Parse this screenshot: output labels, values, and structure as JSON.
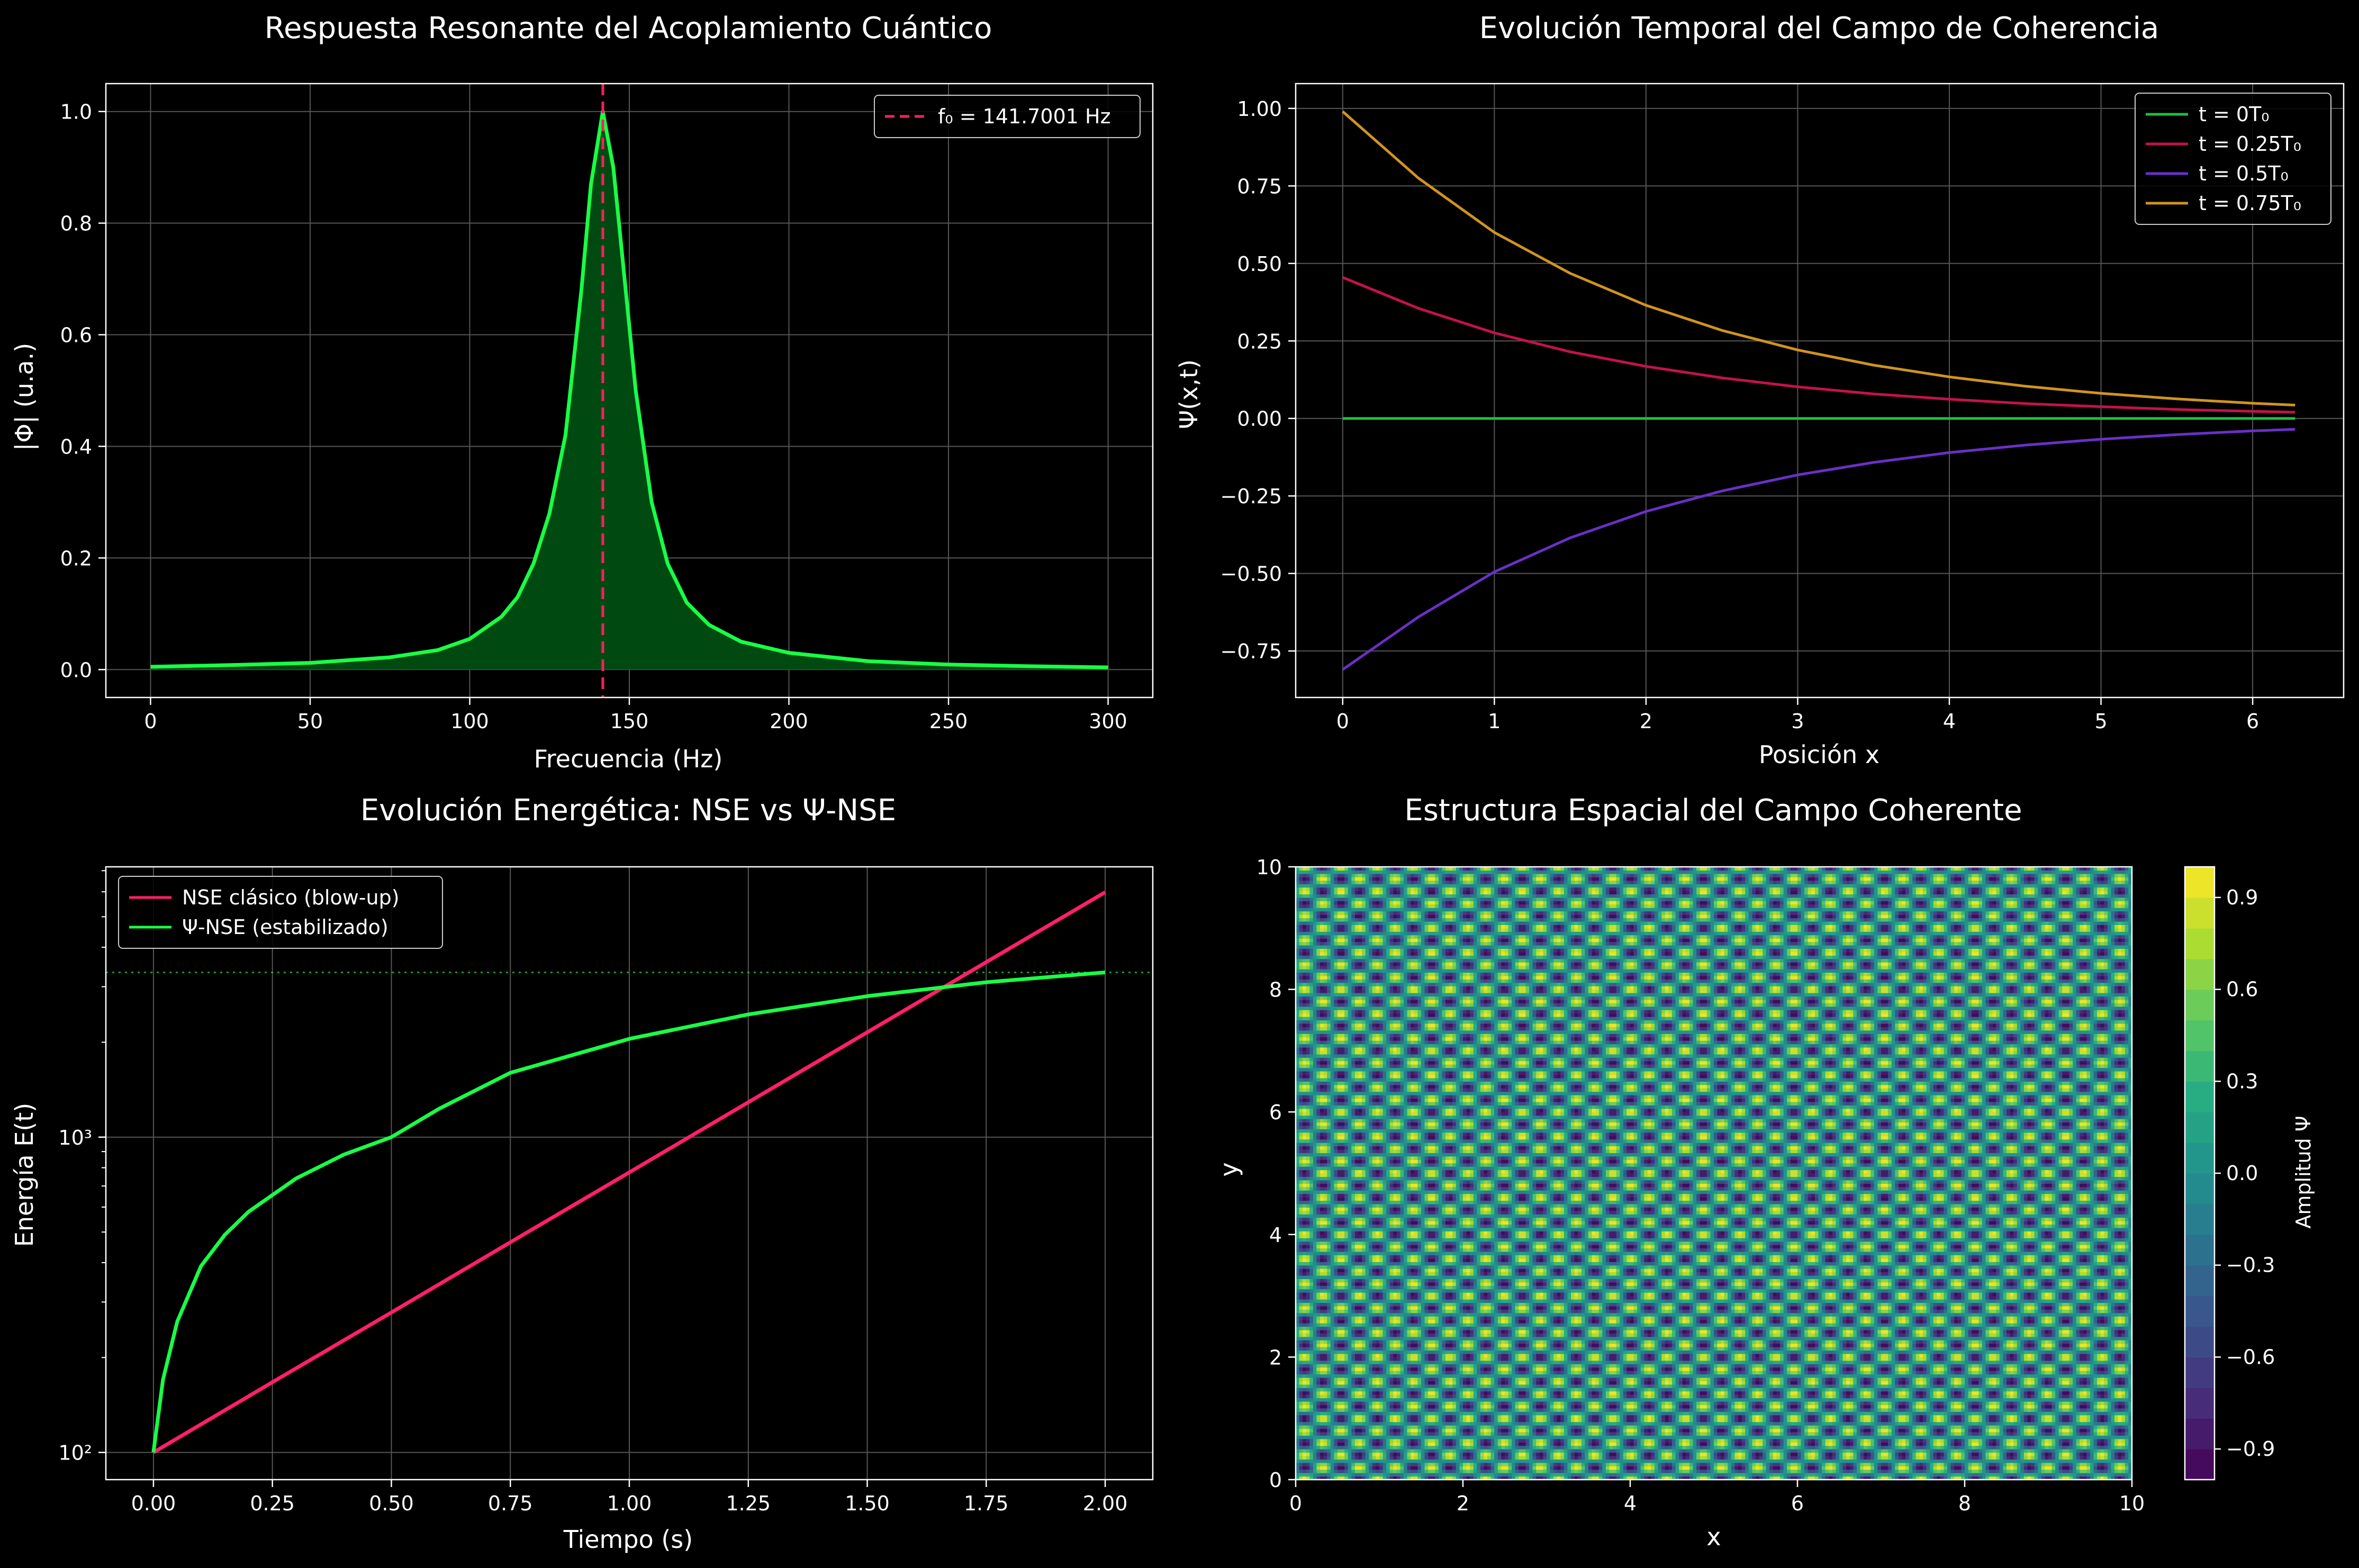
{
  "figure": {
    "background": "#000000",
    "axes_color": "#ffffff",
    "grid_color": "#555555"
  },
  "chart_data": [
    {
      "id": "resonance",
      "type": "area",
      "title": "Respuesta Resonante del Acoplamiento Cuántico",
      "xlabel": "Frecuencia (Hz)",
      "ylabel": "|Φ| (u.a.)",
      "xlim": [
        -14,
        314
      ],
      "ylim": [
        -0.05,
        1.05
      ],
      "xticks": [
        0,
        50,
        100,
        150,
        200,
        250,
        300
      ],
      "yticks": [
        0.0,
        0.2,
        0.4,
        0.6,
        0.8,
        1.0
      ],
      "xticklabels": [
        "0",
        "50",
        "100",
        "150",
        "200",
        "250",
        "300"
      ],
      "yticklabels": [
        "0.0",
        "0.2",
        "0.4",
        "0.6",
        "0.8",
        "1.0"
      ],
      "grid": true,
      "legend_position": "top-right",
      "series": [
        {
          "x": [
            0,
            25,
            50,
            75,
            90,
            100,
            110,
            115,
            120,
            125,
            130,
            135,
            138,
            141.7,
            145,
            148,
            152,
            157,
            162,
            168,
            175,
            185,
            200,
            225,
            250,
            275,
            300
          ],
          "y": [
            0.005,
            0.008,
            0.012,
            0.022,
            0.035,
            0.055,
            0.095,
            0.13,
            0.19,
            0.28,
            0.42,
            0.68,
            0.87,
            1.0,
            0.9,
            0.73,
            0.5,
            0.3,
            0.19,
            0.12,
            0.08,
            0.05,
            0.03,
            0.015,
            0.009,
            0.006,
            0.004
          ],
          "color": "#19ff46",
          "fill_color": "#004a11"
        }
      ],
      "vline": {
        "x": 141.7001,
        "label": "f₀ = 141.7001 Hz",
        "color": "#ff1f5a"
      }
    },
    {
      "id": "temporal",
      "type": "line",
      "title": "Evolución Temporal del Campo de Coherencia",
      "xlabel": "Posición x",
      "ylabel": "Ψ(x,t)",
      "xlim": [
        -0.31,
        6.6
      ],
      "ylim": [
        -0.9,
        1.08
      ],
      "xticks": [
        0,
        1,
        2,
        3,
        4,
        5,
        6
      ],
      "yticks": [
        -0.75,
        -0.5,
        -0.25,
        0.0,
        0.25,
        0.5,
        0.75,
        1.0
      ],
      "xticklabels": [
        "0",
        "1",
        "2",
        "3",
        "4",
        "5",
        "6"
      ],
      "yticklabels": [
        "−0.75",
        "−0.50",
        "−0.25",
        "0.00",
        "0.25",
        "0.50",
        "0.75",
        "1.00"
      ],
      "grid": true,
      "legend_position": "top-right",
      "series": [
        {
          "name": "t = 0T₀",
          "color": "#1fbf3a",
          "x": [
            0,
            0.5,
            1,
            1.5,
            2,
            2.5,
            3,
            3.5,
            4,
            4.5,
            5,
            5.5,
            6,
            6.28
          ],
          "y": [
            0,
            0,
            0,
            0,
            0,
            0,
            0,
            0,
            0,
            0,
            0,
            0,
            0,
            0
          ]
        },
        {
          "name": "t = 0.25T₀",
          "color": "#c4124a",
          "x": [
            0,
            0.5,
            1,
            1.5,
            2,
            2.5,
            3,
            3.5,
            4,
            4.5,
            5,
            5.5,
            6,
            6.28
          ],
          "y": [
            0.455,
            0.355,
            0.276,
            0.215,
            0.168,
            0.131,
            0.102,
            0.079,
            0.062,
            0.048,
            0.038,
            0.029,
            0.023,
            0.02
          ]
        },
        {
          "name": "t = 0.5T₀",
          "color": "#6a30c8",
          "x": [
            0,
            0.5,
            1,
            1.5,
            2,
            2.5,
            3,
            3.5,
            4,
            4.5,
            5,
            5.5,
            6,
            6.28
          ],
          "y": [
            -0.81,
            -0.64,
            -0.495,
            -0.385,
            -0.3,
            -0.234,
            -0.182,
            -0.142,
            -0.11,
            -0.086,
            -0.067,
            -0.052,
            -0.04,
            -0.035
          ]
        },
        {
          "name": "t = 0.75T₀",
          "color": "#d0941e",
          "x": [
            0,
            0.5,
            1,
            1.5,
            2,
            2.5,
            3,
            3.5,
            4,
            4.5,
            5,
            5.5,
            6,
            6.28
          ],
          "y": [
            0.99,
            0.775,
            0.6,
            0.468,
            0.365,
            0.284,
            0.221,
            0.172,
            0.134,
            0.104,
            0.081,
            0.063,
            0.049,
            0.043
          ]
        }
      ]
    },
    {
      "id": "energy",
      "type": "line",
      "title": "Evolución Energética: NSE vs Ψ-NSE",
      "xlabel": "Tiempo (s)",
      "ylabel": "Energía E(t)",
      "yscale": "log",
      "xlim": [
        -0.1,
        2.1
      ],
      "ylim": [
        82,
        7200
      ],
      "xticks": [
        0,
        0.25,
        0.5,
        0.75,
        1.0,
        1.25,
        1.5,
        1.75,
        2.0
      ],
      "xticklabels": [
        "0.00",
        "0.25",
        "0.50",
        "0.75",
        "1.00",
        "1.25",
        "1.50",
        "1.75",
        "2.00"
      ],
      "yticks": [
        100,
        1000
      ],
      "yticklabels": [
        "10²",
        "10³"
      ],
      "grid": true,
      "legend_position": "top-left",
      "hline": {
        "y": 3330,
        "color": "#19ff46"
      },
      "series": [
        {
          "name": "NSE clásico (blow-up)",
          "color": "#ff1f6b",
          "x": [
            0,
            0.25,
            0.5,
            0.75,
            1.0,
            1.25,
            1.5,
            1.75,
            2.0
          ],
          "y": [
            100,
            167,
            278,
            464,
            773,
            1290,
            2150,
            3590,
            5980
          ]
        },
        {
          "name": "Ψ-NSE (estabilizado)",
          "color": "#19ff46",
          "x": [
            0,
            0.02,
            0.05,
            0.1,
            0.15,
            0.2,
            0.3,
            0.4,
            0.5,
            0.6,
            0.75,
            1.0,
            1.25,
            1.5,
            1.75,
            2.0
          ],
          "y": [
            100,
            170,
            260,
            390,
            490,
            580,
            740,
            880,
            1000,
            1230,
            1600,
            2050,
            2450,
            2800,
            3100,
            3330
          ]
        }
      ]
    },
    {
      "id": "spatial",
      "type": "heatmap",
      "title": "Estructura Espacial del Campo Coherente",
      "xlabel": "x",
      "ylabel": "y",
      "xlim": [
        0,
        10
      ],
      "ylim": [
        0,
        10
      ],
      "xticks": [
        0,
        2,
        4,
        6,
        8,
        10
      ],
      "yticks": [
        0,
        2,
        4,
        6,
        8,
        10
      ],
      "xticklabels": [
        "0",
        "2",
        "4",
        "6",
        "8",
        "10"
      ],
      "yticklabels": [
        "0",
        "2",
        "4",
        "6",
        "8",
        "10"
      ],
      "field": "sin(kx·x)·cos(ky·y)",
      "kx": 14.5,
      "ky": 15.7,
      "colorbar": {
        "label": "Amplitud Ψ",
        "range": [
          -1,
          1
        ],
        "levels": 20,
        "ticks": [
          -0.9,
          -0.6,
          -0.3,
          0.0,
          0.3,
          0.6,
          0.9
        ],
        "ticklabels": [
          "−0.9",
          "−0.6",
          "−0.3",
          "0.0",
          "0.3",
          "0.6",
          "0.9"
        ]
      },
      "colormap": "viridis"
    }
  ]
}
